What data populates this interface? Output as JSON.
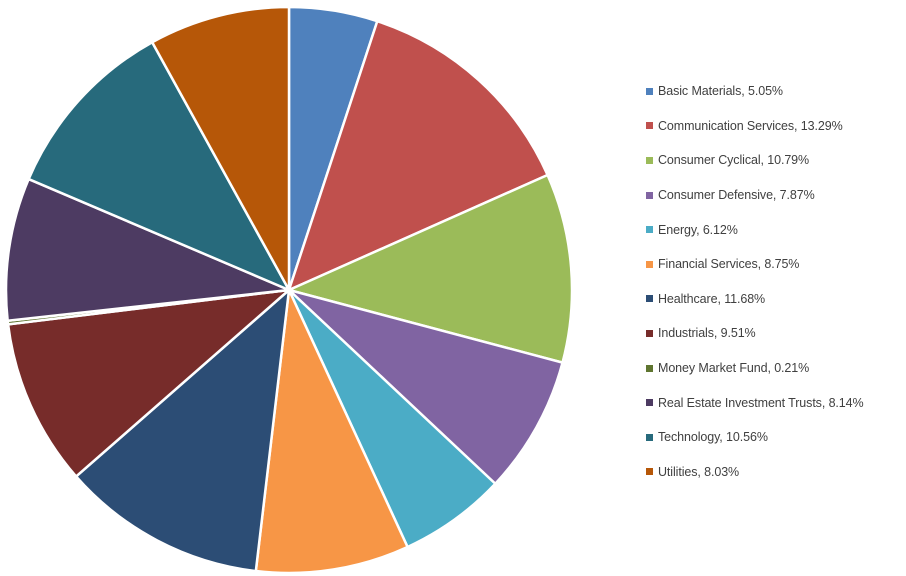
{
  "chart_data": {
    "type": "pie",
    "title": "",
    "legend_position": "right",
    "slices": [
      {
        "label": "Basic Materials",
        "value": 5.05,
        "legend_text": "Basic Materials, 5.05%",
        "color": "#4F81BD"
      },
      {
        "label": "Communication Services",
        "value": 13.29,
        "legend_text": "Communication Services, 13.29%",
        "color": "#C0504D"
      },
      {
        "label": "Consumer Cyclical",
        "value": 10.79,
        "legend_text": "Consumer Cyclical, 10.79%",
        "color": "#9BBB59"
      },
      {
        "label": "Consumer Defensive",
        "value": 7.87,
        "legend_text": "Consumer Defensive, 7.87%",
        "color": "#8064A2"
      },
      {
        "label": "Energy",
        "value": 6.12,
        "legend_text": "Energy, 6.12%",
        "color": "#4BACC6"
      },
      {
        "label": "Financial Services",
        "value": 8.75,
        "legend_text": "Financial Services, 8.75%",
        "color": "#F79646"
      },
      {
        "label": "Healthcare",
        "value": 11.68,
        "legend_text": "Healthcare, 11.68%",
        "color": "#2C4D75"
      },
      {
        "label": "Industrials",
        "value": 9.51,
        "legend_text": "Industrials, 9.51%",
        "color": "#772C2A"
      },
      {
        "label": "Money Market Fund",
        "value": 0.21,
        "legend_text": "Money Market Fund, 0.21%",
        "color": "#5F7530"
      },
      {
        "label": "Real Estate Investment Trusts",
        "value": 8.14,
        "legend_text": "Real Estate Investment Trusts, 8.14%",
        "color": "#4D3B62"
      },
      {
        "label": "Technology",
        "value": 10.56,
        "legend_text": "Technology, 10.56%",
        "color": "#276A7C"
      },
      {
        "label": "Utilities",
        "value": 8.03,
        "legend_text": "Utilities, 8.03%",
        "color": "#B65708"
      }
    ]
  }
}
